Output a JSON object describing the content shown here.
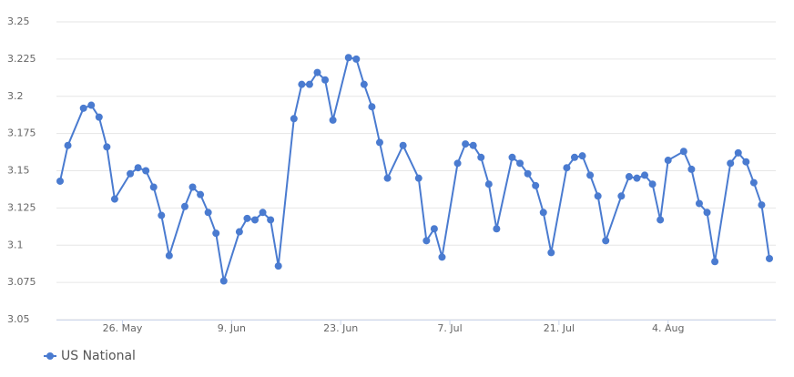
{
  "chart_data": {
    "type": "line",
    "x": [
      "18. May",
      "19. May",
      "21. May",
      "22. May",
      "23. May",
      "24. May",
      "25. May",
      "27. May",
      "28. May",
      "29. May",
      "30. May",
      "31. May",
      "1. Jun",
      "3. Jun",
      "4. Jun",
      "5. Jun",
      "6. Jun",
      "7. Jun",
      "8. Jun",
      "10. Jun",
      "11. Jun",
      "12. Jun",
      "13. Jun",
      "14. Jun",
      "15. Jun",
      "17. Jun",
      "18. Jun",
      "19. Jun",
      "20. Jun",
      "21. Jun",
      "22. Jun",
      "24. Jun",
      "25. Jun",
      "26. Jun",
      "27. Jun",
      "28. Jun",
      "29. Jun",
      "1. Jul",
      "3. Jul",
      "4. Jul",
      "5. Jul",
      "6. Jul",
      "8. Jul",
      "9. Jul",
      "10. Jul",
      "11. Jul",
      "12. Jul",
      "13. Jul",
      "15. Jul",
      "16. Jul",
      "17. Jul",
      "18. Jul",
      "19. Jul",
      "20. Jul",
      "22. Jul",
      "23. Jul",
      "24. Jul",
      "25. Jul",
      "26. Jul",
      "27. Jul",
      "29. Jul",
      "30. Jul",
      "31. Jul",
      "1. Aug",
      "2. Aug",
      "3. Aug",
      "4. Aug",
      "6. Aug",
      "7. Aug",
      "8. Aug",
      "9. Aug",
      "10. Aug",
      "12. Aug",
      "13. Aug",
      "14. Aug",
      "15. Aug",
      "16. Aug",
      "17. Aug"
    ],
    "series": [
      {
        "name": "US National",
        "color": "#4a7bd0",
        "values": [
          3.143,
          3.167,
          3.192,
          3.194,
          3.186,
          3.166,
          3.131,
          3.148,
          3.152,
          3.15,
          3.139,
          3.12,
          3.093,
          3.126,
          3.139,
          3.134,
          3.122,
          3.108,
          3.076,
          3.109,
          3.118,
          3.117,
          3.122,
          3.117,
          3.086,
          3.185,
          3.208,
          3.208,
          3.216,
          3.211,
          3.184,
          3.226,
          3.225,
          3.208,
          3.193,
          3.169,
          3.145,
          3.167,
          3.145,
          3.103,
          3.111,
          3.092,
          3.155,
          3.168,
          3.167,
          3.159,
          3.141,
          3.111,
          3.159,
          3.155,
          3.148,
          3.14,
          3.122,
          3.095,
          3.152,
          3.159,
          3.16,
          3.147,
          3.133,
          3.103,
          3.133,
          3.146,
          3.145,
          3.147,
          3.141,
          3.117,
          3.157,
          3.163,
          3.151,
          3.128,
          3.122,
          3.089,
          3.155,
          3.162,
          3.156,
          3.142,
          3.127,
          3.091
        ]
      }
    ],
    "xlim": [
      "18. May",
      "17. Aug"
    ],
    "xticks": [
      "26. May",
      "9. Jun",
      "23. Jun",
      "7. Jul",
      "21. Jul",
      "4. Aug"
    ],
    "ylim": [
      3.05,
      3.25
    ],
    "yticks": [
      3.05,
      3.075,
      3.1,
      3.125,
      3.15,
      3.175,
      3.2,
      3.225,
      3.25
    ],
    "grid": true
  }
}
